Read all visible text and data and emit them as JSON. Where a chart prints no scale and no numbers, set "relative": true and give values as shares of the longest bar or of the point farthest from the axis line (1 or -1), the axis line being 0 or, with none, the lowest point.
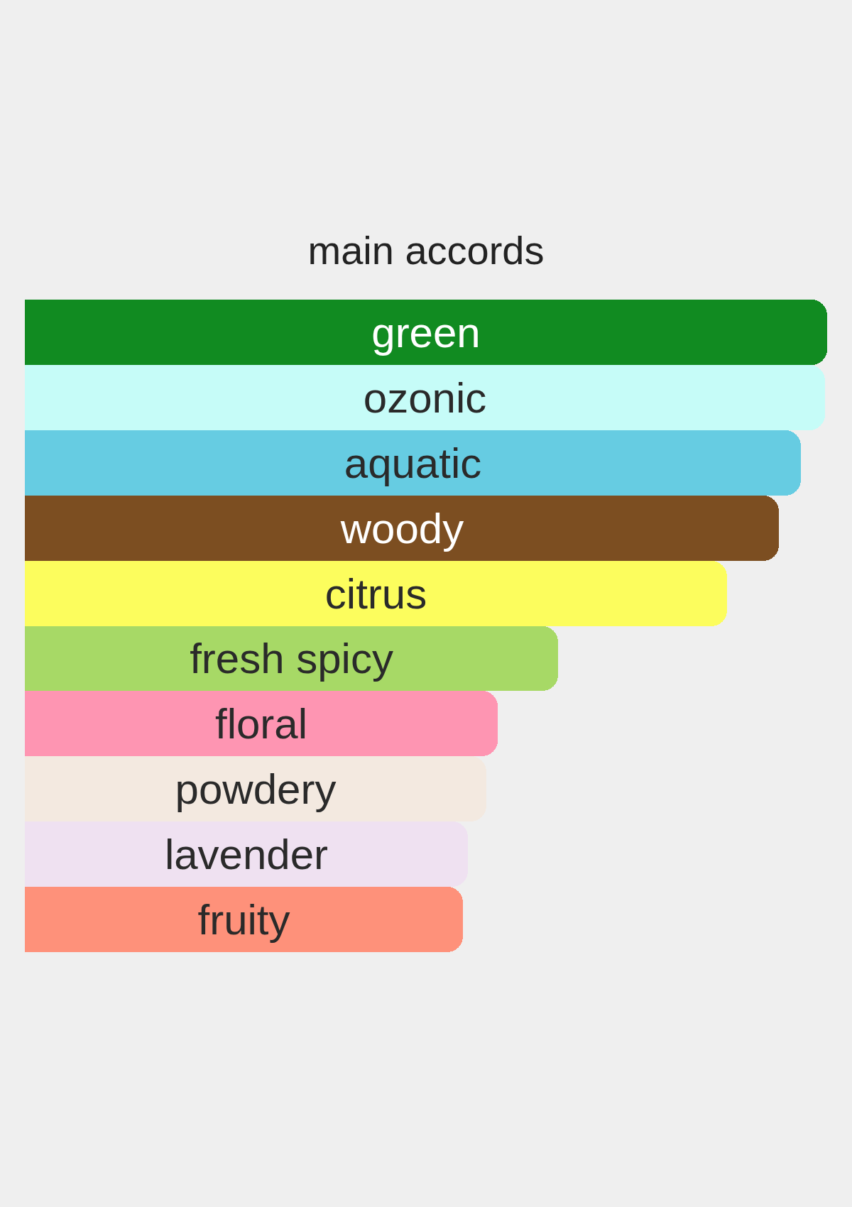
{
  "chart_data": {
    "type": "bar",
    "orientation": "horizontal",
    "relative": true,
    "title": "main accords",
    "categories": [
      "green",
      "ozonic",
      "aquatic",
      "woody",
      "citrus",
      "fresh spicy",
      "floral",
      "powdery",
      "lavender",
      "fruity"
    ],
    "values": [
      1.0,
      0.997,
      0.967,
      0.94,
      0.875,
      0.665,
      0.589,
      0.575,
      0.552,
      0.546
    ],
    "colors": [
      "#118b21",
      "#c6fcf8",
      "#66cce2",
      "#7c4e21",
      "#fcfd5d",
      "#a7d966",
      "#fe95b2",
      "#f3e9e0",
      "#efe1f1",
      "#fe917a"
    ]
  }
}
